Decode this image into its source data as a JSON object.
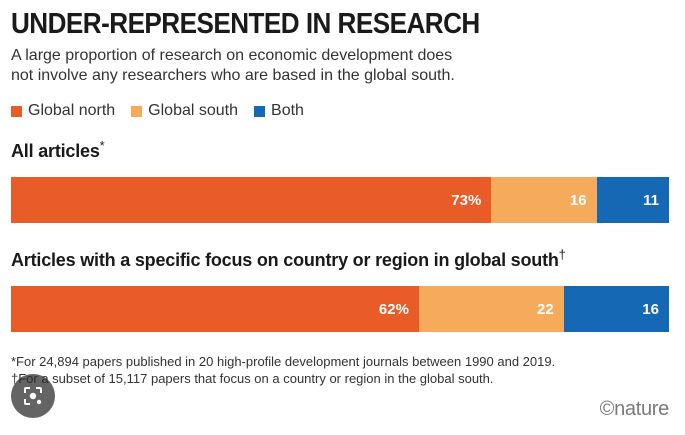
{
  "title": "UNDER-REPRESENTED IN RESEARCH",
  "subtitle_lines": [
    "A large proportion of research on economic development does",
    "not involve any researchers who are based in the global south."
  ],
  "legend": [
    {
      "label": "Global north",
      "color": "#e95b27"
    },
    {
      "label": "Global south",
      "color": "#f6aa5c"
    },
    {
      "label": "Both",
      "color": "#1568b3"
    }
  ],
  "chart_data": [
    {
      "type": "bar",
      "stacked": true,
      "orientation": "horizontal",
      "label": "All articles",
      "label_mark": "*",
      "series": [
        {
          "name": "Global north",
          "value": 73,
          "display": "73%"
        },
        {
          "name": "Global south",
          "value": 16,
          "display": "16"
        },
        {
          "name": "Both",
          "value": 11,
          "display": "11"
        }
      ]
    },
    {
      "type": "bar",
      "stacked": true,
      "orientation": "horizontal",
      "label": "Articles with a specific focus on country or region in global south",
      "label_mark": "†",
      "series": [
        {
          "name": "Global north",
          "value": 62,
          "display": "62%"
        },
        {
          "name": "Global south",
          "value": 22,
          "display": "22"
        },
        {
          "name": "Both",
          "value": 16,
          "display": "16"
        }
      ]
    }
  ],
  "footnotes": [
    "*For 24,894 papers published in 20 high-profile development journals between 1990 and 2019.",
    "†For a subset of 15,117 papers that focus on a country or region in the global south."
  ],
  "credit": "©nature",
  "overlay": {
    "icon": "lens-search-icon"
  }
}
